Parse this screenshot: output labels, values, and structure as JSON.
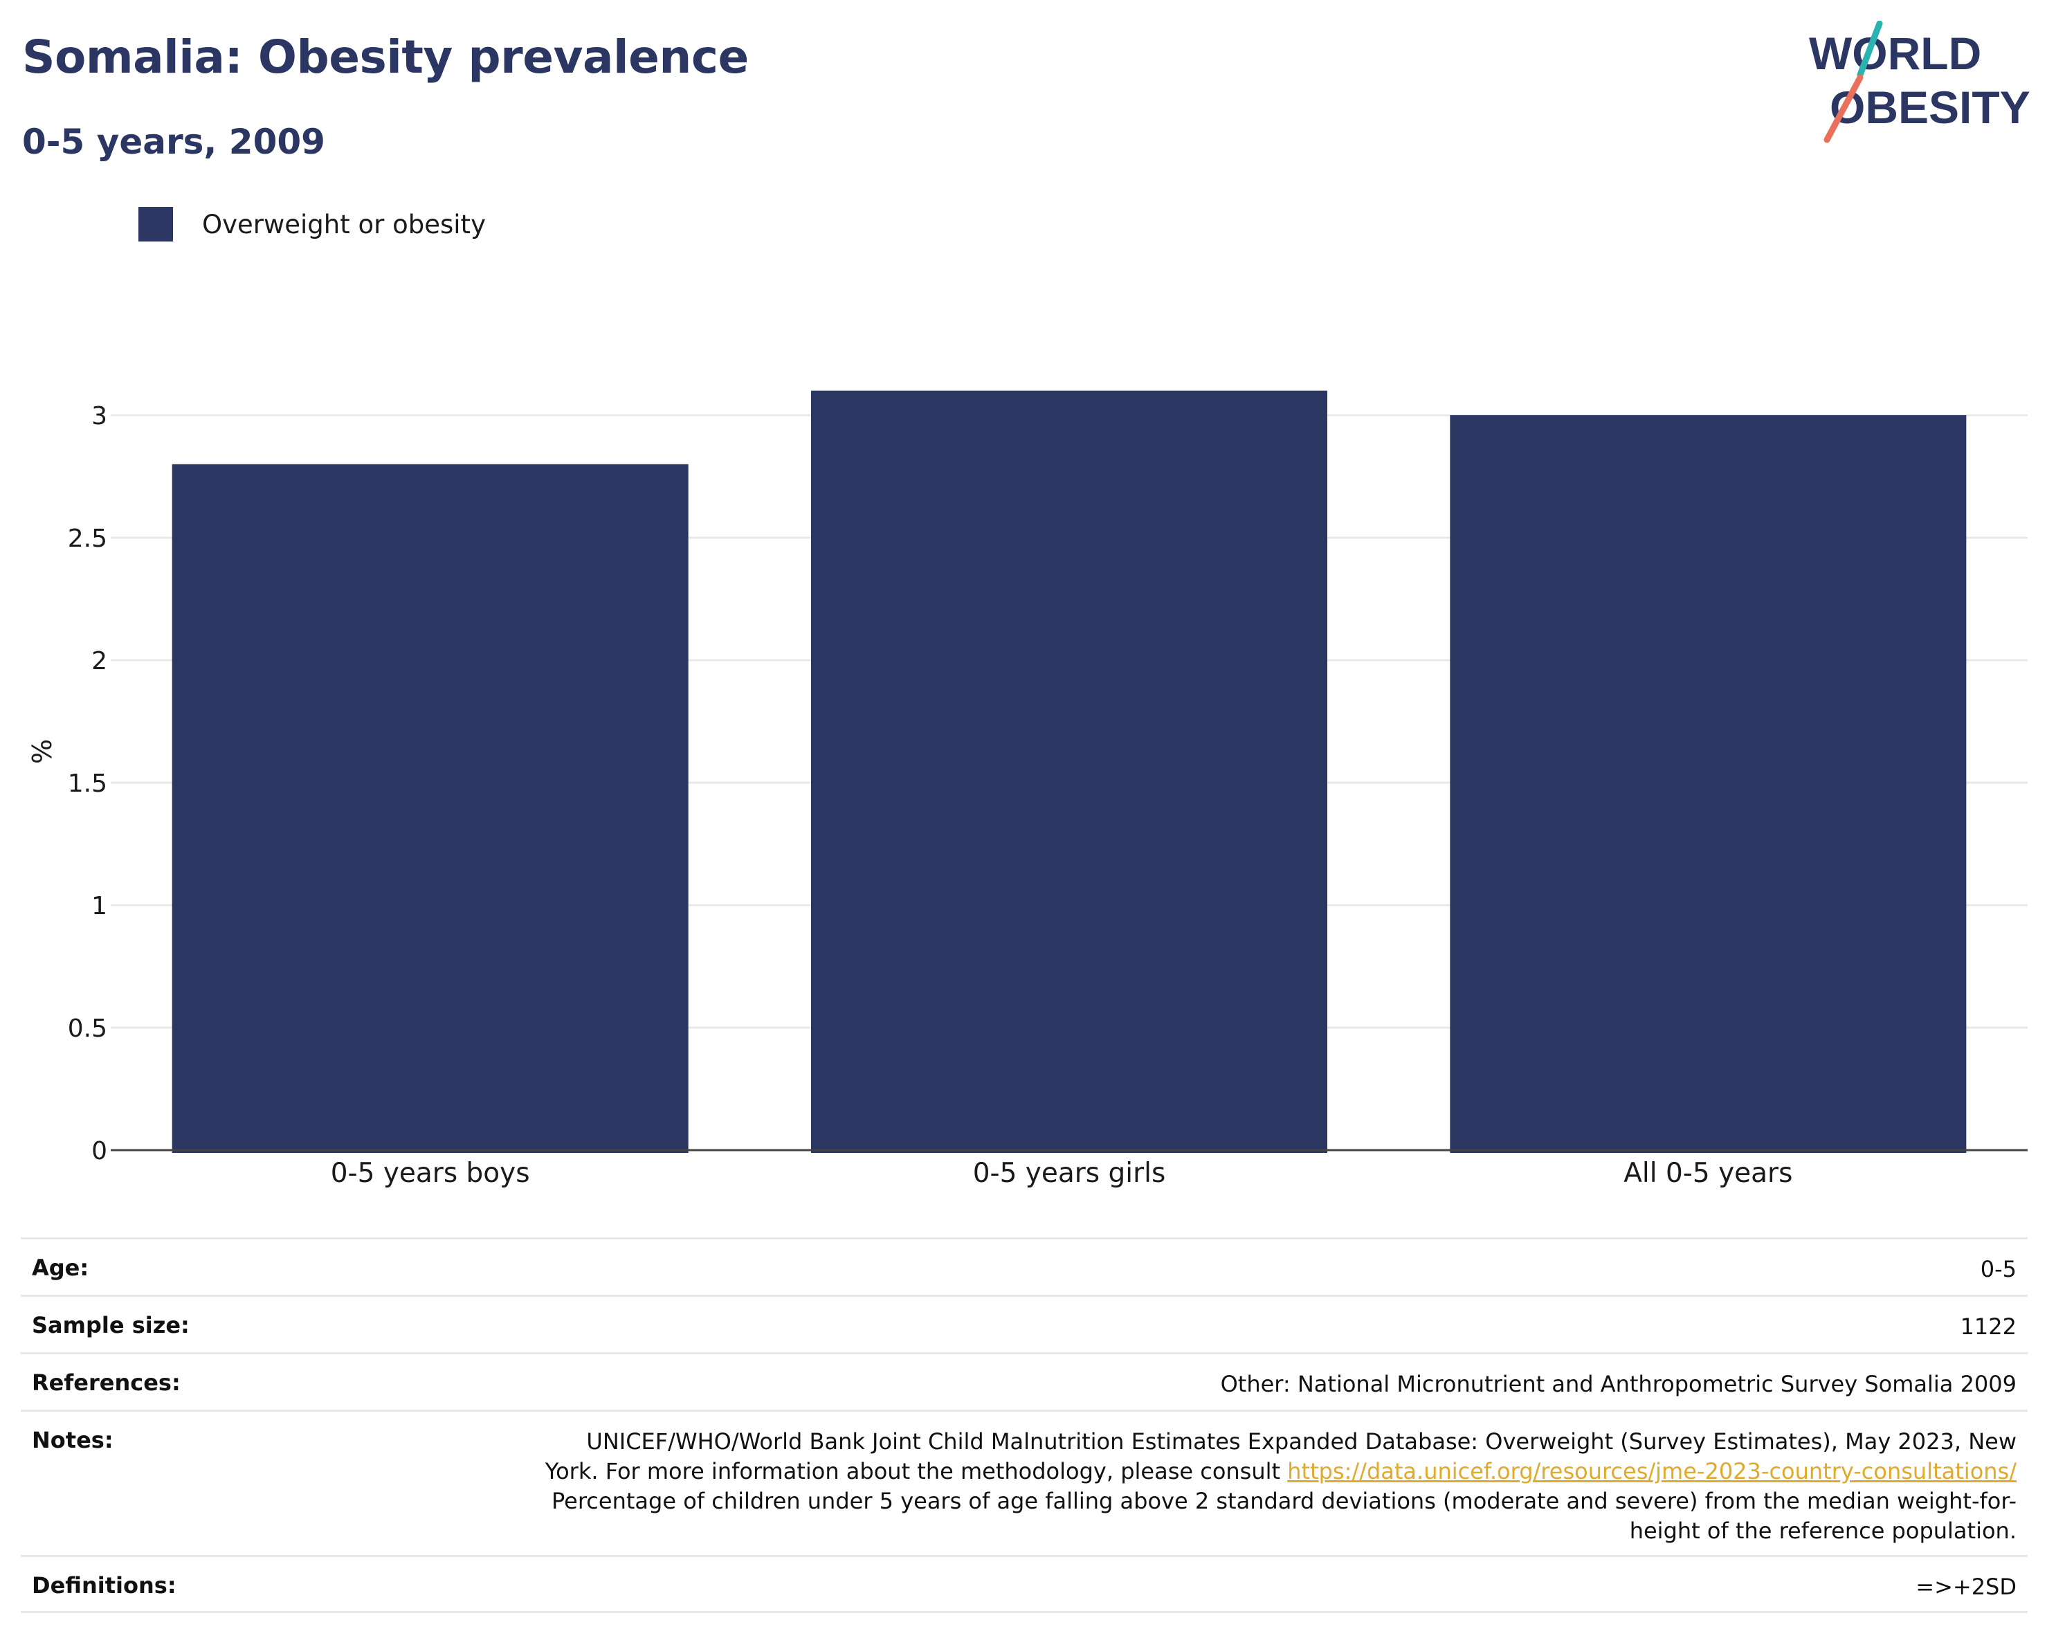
{
  "header": {
    "title": "Somalia: Obesity prevalence",
    "subtitle": "0-5 years, 2009"
  },
  "logo": {
    "line1": "WORLD",
    "line2": "OBESITY"
  },
  "legend": {
    "label": "Overweight or obesity"
  },
  "colors": {
    "bar": "#2b3663",
    "title": "#2b3663",
    "grid": "#e8e8e8",
    "axis": "#444444",
    "link": "#e0aa2a",
    "logo_teal": "#2ab3b1",
    "logo_coral": "#e9705a"
  },
  "chart_data": {
    "type": "bar",
    "categories": [
      "0-5 years boys",
      "0-5 years girls",
      "All 0-5 years"
    ],
    "series": [
      {
        "name": "Overweight or obesity",
        "values": [
          2.8,
          3.1,
          3.0
        ]
      }
    ],
    "title": "Somalia: Obesity prevalence",
    "subtitle": "0-5 years, 2009",
    "xlabel": "",
    "ylabel": "%",
    "ylim": [
      0,
      3.1
    ],
    "yticks": [
      0,
      0.5,
      1,
      1.5,
      2,
      2.5,
      3
    ],
    "ytick_labels": [
      "0",
      "0.5",
      "1",
      "1.5",
      "2",
      "2.5",
      "3"
    ],
    "grid": true,
    "legend_position": "top-left"
  },
  "meta": {
    "age_label": "Age:",
    "age_value": "0-5",
    "sample_label": "Sample size:",
    "sample_value": "1122",
    "references_label": "References:",
    "references_value": "Other: National Micronutrient and Anthropometric Survey Somalia 2009",
    "notes_label": "Notes:",
    "notes_line1": "UNICEF/WHO/World Bank Joint Child Malnutrition Estimates Expanded Database: Overweight (Survey Estimates), May 2023, New",
    "notes_line2_prefix": "York. For more information about the methodology, please consult ",
    "notes_link": "https://data.unicef.org/resources/jme-2023-country-consultations/",
    "notes_line3": "Percentage of children under 5 years of age falling above 2 standard deviations (moderate and severe) from the median weight-for-",
    "notes_line4": "height of the reference population.",
    "definitions_label": "Definitions:",
    "definitions_value": "=>+2SD"
  }
}
